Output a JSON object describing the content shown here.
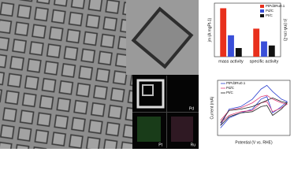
{
  "chart_data": [
    {
      "type": "bar",
      "categories": [
        "mass activity",
        "specific activity"
      ],
      "y_label": "jm (A mgPt-1)",
      "y2_label": "js (mA cm-2)",
      "series": [
        {
          "name": "PtPd3Ru0.1",
          "color": "#e8301c",
          "values": [
            0.95,
            0.55
          ]
        },
        {
          "name": "Pd/C",
          "color": "#3a4fd8",
          "values": [
            0.42,
            0.3
          ]
        },
        {
          "name": "Pt/C",
          "color": "#111111",
          "values": [
            0.17,
            0.22
          ]
        }
      ],
      "ylim": [
        0,
        1.05
      ],
      "legend": "upper-right"
    },
    {
      "type": "line",
      "x_label": "Potential (V vs. RHE)",
      "y_label": "Current (mA)",
      "x": [
        0.05,
        0.2,
        0.4,
        0.6,
        0.75,
        0.85,
        0.95,
        1.1,
        1.2,
        1.1,
        0.95,
        0.85,
        0.75,
        0.6,
        0.4,
        0.2,
        0.05
      ],
      "series": [
        {
          "name": "PtPd3Ru0.1",
          "color": "#2a3fd0",
          "values": [
            -0.6,
            0.05,
            0.15,
            0.45,
            0.85,
            1.0,
            0.75,
            0.45,
            0.35,
            0.15,
            -0.1,
            0.55,
            0.45,
            0.05,
            -0.1,
            -0.3,
            -0.7
          ]
        },
        {
          "name": "Pd/C",
          "color": "#e0407a",
          "values": [
            -0.4,
            0.0,
            0.1,
            0.3,
            0.55,
            0.6,
            0.45,
            0.3,
            0.25,
            0.1,
            -0.05,
            0.35,
            0.3,
            0.0,
            -0.05,
            -0.2,
            -0.5
          ]
        },
        {
          "name": "Pt/C",
          "color": "#222222",
          "values": [
            -0.5,
            0.0,
            0.05,
            0.15,
            0.3,
            0.4,
            0.5,
            0.35,
            0.3,
            0.05,
            -0.2,
            0.2,
            0.15,
            -0.05,
            -0.1,
            -0.25,
            -0.6
          ]
        }
      ],
      "xlim": [
        0,
        1.25
      ],
      "ylim": [
        -1,
        1.2
      ],
      "legend": "upper-left"
    }
  ],
  "mapping": {
    "labels": [
      "Pd",
      "Pt",
      "Ru"
    ]
  }
}
